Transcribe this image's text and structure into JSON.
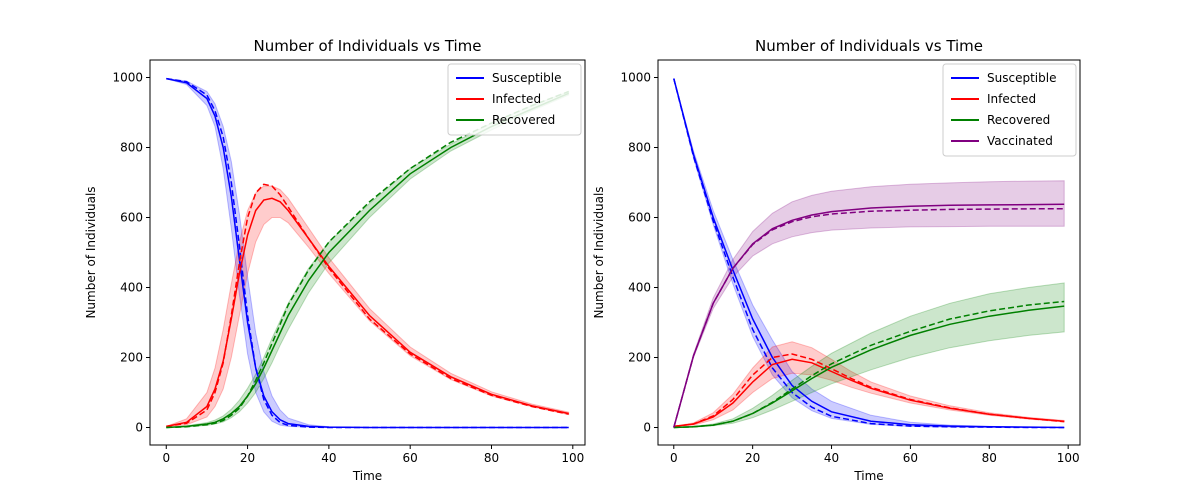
{
  "colors": {
    "susceptible": "#0000ff",
    "infected": "#ff0000",
    "recovered": "#008000",
    "vaccinated": "#800080"
  },
  "chart_data": [
    {
      "type": "line",
      "title": "Number of Individuals vs Time",
      "xlabel": "Time",
      "ylabel": "Number of Individuals",
      "xlim": [
        -4,
        103
      ],
      "ylim": [
        -50,
        1050
      ],
      "xticks": [
        0,
        20,
        40,
        60,
        80,
        100
      ],
      "yticks": [
        0,
        200,
        400,
        600,
        800,
        1000
      ],
      "legend_position": "top-right",
      "grid": false,
      "series": [
        {
          "name": "Susceptible",
          "color_key": "susceptible",
          "x": [
            0,
            5,
            10,
            12,
            14,
            16,
            18,
            20,
            22,
            24,
            26,
            28,
            30,
            35,
            40,
            50,
            60,
            80,
            99
          ],
          "mean": [
            997,
            985,
            940,
            890,
            800,
            660,
            480,
            300,
            170,
            90,
            45,
            22,
            11,
            3,
            1,
            0,
            0,
            0,
            0
          ],
          "dashed": [
            997,
            988,
            950,
            905,
            830,
            700,
            520,
            320,
            170,
            80,
            35,
            14,
            6,
            1,
            0,
            0,
            0,
            0,
            0
          ],
          "lower": [
            997,
            980,
            920,
            860,
            740,
            570,
            380,
            210,
            100,
            45,
            18,
            7,
            3,
            1,
            0,
            0,
            0,
            0,
            0
          ],
          "upper": [
            997,
            990,
            960,
            925,
            860,
            760,
            610,
            430,
            270,
            160,
            90,
            50,
            27,
            8,
            2,
            0,
            0,
            0,
            0
          ]
        },
        {
          "name": "Infected",
          "color_key": "infected",
          "x": [
            0,
            5,
            10,
            12,
            14,
            16,
            18,
            20,
            22,
            24,
            26,
            28,
            30,
            35,
            40,
            50,
            60,
            70,
            80,
            90,
            99
          ],
          "mean": [
            3,
            15,
            60,
            110,
            190,
            310,
            440,
            550,
            620,
            650,
            655,
            645,
            620,
            540,
            460,
            320,
            215,
            145,
            95,
            62,
            40
          ],
          "dashed": [
            3,
            12,
            50,
            100,
            185,
            320,
            470,
            600,
            670,
            695,
            690,
            665,
            630,
            540,
            455,
            310,
            210,
            140,
            92,
            60,
            38
          ],
          "lower": [
            3,
            8,
            30,
            60,
            110,
            200,
            320,
            440,
            530,
            580,
            600,
            600,
            585,
            515,
            440,
            305,
            205,
            137,
            90,
            59,
            37
          ],
          "upper": [
            3,
            25,
            100,
            170,
            280,
            410,
            530,
            620,
            670,
            690,
            690,
            680,
            655,
            570,
            485,
            340,
            230,
            155,
            102,
            67,
            44
          ]
        },
        {
          "name": "Recovered",
          "color_key": "recovered",
          "x": [
            0,
            5,
            10,
            12,
            14,
            16,
            18,
            20,
            22,
            24,
            26,
            28,
            30,
            35,
            40,
            50,
            60,
            70,
            80,
            90,
            99
          ],
          "mean": [
            0,
            3,
            10,
            15,
            25,
            40,
            60,
            90,
            125,
            170,
            220,
            270,
            320,
            420,
            500,
            620,
            725,
            800,
            860,
            910,
            955
          ],
          "dashed": [
            0,
            2,
            8,
            12,
            20,
            35,
            55,
            90,
            135,
            185,
            240,
            295,
            350,
            450,
            530,
            645,
            740,
            815,
            870,
            920,
            960
          ],
          "lower": [
            0,
            2,
            6,
            10,
            16,
            28,
            45,
            70,
            100,
            140,
            185,
            235,
            280,
            385,
            470,
            600,
            710,
            790,
            850,
            905,
            950
          ],
          "upper": [
            0,
            5,
            14,
            21,
            33,
            52,
            78,
            112,
            152,
            200,
            255,
            305,
            355,
            455,
            530,
            640,
            740,
            810,
            870,
            920,
            960
          ]
        }
      ]
    },
    {
      "type": "line",
      "title": "Number of Individuals vs Time",
      "xlabel": "Time",
      "ylabel": "Number of Individuals",
      "xlim": [
        -4,
        103
      ],
      "ylim": [
        -50,
        1050
      ],
      "xticks": [
        0,
        20,
        40,
        60,
        80,
        100
      ],
      "yticks": [
        0,
        200,
        400,
        600,
        800,
        1000
      ],
      "legend_position": "top-right",
      "grid": false,
      "series": [
        {
          "name": "Susceptible",
          "color_key": "susceptible",
          "x": [
            0,
            5,
            10,
            15,
            20,
            25,
            30,
            35,
            40,
            50,
            60,
            70,
            80,
            90,
            99
          ],
          "mean": [
            997,
            780,
            600,
            450,
            310,
            200,
            120,
            75,
            45,
            18,
            8,
            4,
            2,
            1,
            0
          ],
          "dashed": [
            997,
            775,
            590,
            430,
            280,
            170,
            100,
            58,
            32,
            11,
            4,
            2,
            1,
            0,
            0
          ],
          "lower": [
            997,
            770,
            580,
            410,
            260,
            150,
            85,
            48,
            26,
            9,
            3,
            1,
            0,
            0,
            0
          ],
          "upper": [
            997,
            790,
            620,
            480,
            350,
            250,
            160,
            110,
            75,
            35,
            15,
            7,
            3,
            1,
            0
          ]
        },
        {
          "name": "Infected",
          "color_key": "infected",
          "x": [
            0,
            5,
            10,
            15,
            20,
            25,
            30,
            35,
            40,
            45,
            50,
            60,
            70,
            80,
            90,
            99
          ],
          "mean": [
            3,
            10,
            30,
            70,
            130,
            180,
            195,
            185,
            160,
            135,
            112,
            78,
            55,
            38,
            26,
            18
          ],
          "dashed": [
            3,
            10,
            33,
            80,
            150,
            200,
            210,
            195,
            168,
            140,
            115,
            80,
            56,
            38,
            26,
            17
          ],
          "lower": [
            3,
            7,
            22,
            50,
            100,
            140,
            155,
            150,
            135,
            115,
            98,
            70,
            50,
            35,
            24,
            16
          ],
          "upper": [
            3,
            13,
            42,
            95,
            170,
            230,
            245,
            228,
            195,
            160,
            130,
            90,
            62,
            42,
            29,
            20
          ]
        },
        {
          "name": "Recovered",
          "color_key": "recovered",
          "x": [
            0,
            5,
            10,
            15,
            20,
            25,
            30,
            35,
            40,
            50,
            60,
            70,
            80,
            90,
            99
          ],
          "mean": [
            0,
            2,
            7,
            18,
            40,
            70,
            105,
            140,
            172,
            222,
            263,
            295,
            318,
            335,
            347
          ],
          "dashed": [
            0,
            2,
            7,
            18,
            40,
            72,
            110,
            148,
            182,
            235,
            275,
            310,
            333,
            350,
            360
          ],
          "lower": [
            0,
            1,
            5,
            12,
            28,
            50,
            75,
            100,
            125,
            165,
            200,
            228,
            248,
            263,
            273
          ],
          "upper": [
            0,
            3,
            10,
            25,
            55,
            92,
            135,
            175,
            212,
            270,
            318,
            355,
            382,
            400,
            413
          ]
        },
        {
          "name": "Vaccinated",
          "color_key": "vaccinated",
          "x": [
            0,
            5,
            10,
            15,
            20,
            25,
            30,
            35,
            40,
            50,
            60,
            70,
            80,
            90,
            99
          ],
          "mean": [
            0,
            205,
            355,
            455,
            525,
            568,
            592,
            607,
            617,
            627,
            632,
            635,
            636,
            637,
            638
          ],
          "dashed": [
            0,
            205,
            355,
            455,
            523,
            565,
            588,
            602,
            610,
            618,
            621,
            623,
            624,
            625,
            625
          ],
          "lower": [
            0,
            200,
            340,
            430,
            490,
            525,
            545,
            557,
            564,
            570,
            573,
            574,
            575,
            575,
            575
          ],
          "upper": [
            0,
            210,
            370,
            480,
            560,
            612,
            645,
            663,
            675,
            688,
            695,
            699,
            702,
            704,
            705
          ]
        }
      ]
    }
  ]
}
